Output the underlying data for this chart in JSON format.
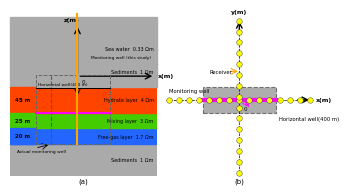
{
  "panel_a": {
    "seawater_color": "#55CCEE",
    "sediment_color": "#AAAAAA",
    "hydrate_color": "#FF4400",
    "mixing_color": "#44CC00",
    "freegas_color": "#2266FF",
    "border_color": "#88CCEE",
    "seawater_label": "Sea water  0.33 Ωm",
    "sediment_top_label": "Sediments  1 Ωm",
    "hydrate_label": "Hydrate layer  4 Ωm",
    "mixing_label": "Mixing layer  3 Ωm",
    "freegas_label": "Free-gas layer  1.7 Ωm",
    "sediment_bot_label": "Sediments  1 Ωm",
    "horiz_well_label": "Horizontal well(400 m)",
    "monitoring_label": "Monitoring well (this study)",
    "actual_monitoring_label": "Actual monitoring well",
    "xlabel": "x(m)",
    "zlabel": "z(m)",
    "dim_45": "45 m",
    "dim_25": "25 m",
    "dim_20": "20 m",
    "origin_label": "0"
  },
  "panel_b": {
    "bg_color": "#55CCEE",
    "box_color": "#999999",
    "receiver_label": "Receiver",
    "monitoring_label": "Monitoring well",
    "horiz_well_label": "Horizontal well(400 m)",
    "xlabel": "x(m)",
    "ylabel": "y(m)",
    "center_label": "0"
  },
  "fig_label_a": "(a)",
  "fig_label_b": "(b)"
}
